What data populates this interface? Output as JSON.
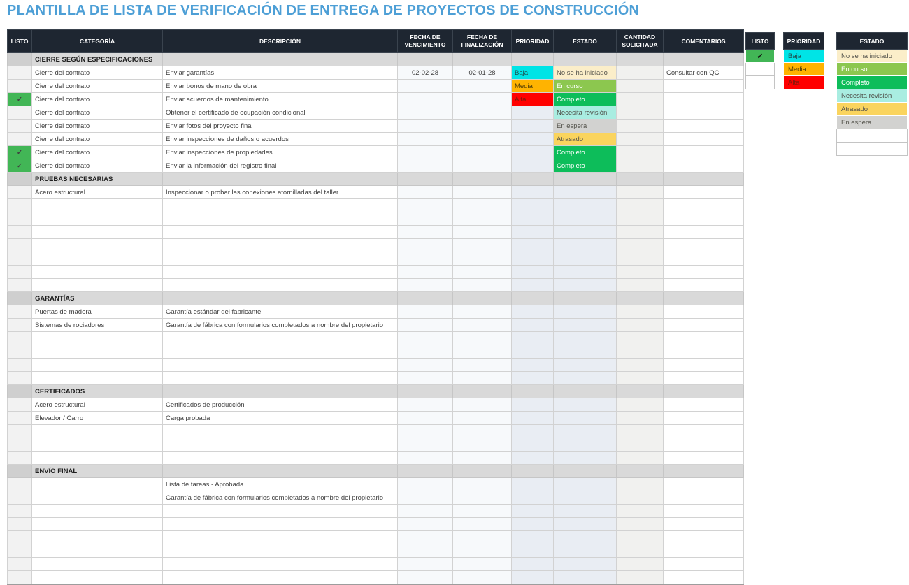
{
  "title": "PLANTILLA DE LISTA DE VERIFICACIÓN DE ENTREGA DE PROYECTOS DE CONSTRUCCIÓN",
  "colors": {
    "title": "#4d9fd6",
    "header_bg": "#1e2631",
    "check_bg": "#42b656",
    "priority": {
      "Baja": {
        "bg": "#00e4e6",
        "fg": "#204848"
      },
      "Media": {
        "bg": "#ffb301",
        "fg": "#4c3a07"
      },
      "Alta": {
        "bg": "#ff0000",
        "fg": "#7a1b0c"
      }
    },
    "status": {
      "No se ha iniciado": {
        "bg": "#fbeec9",
        "fg": "#55544d"
      },
      "En curso": {
        "bg": "#8cc74f",
        "fg": "#ffffff"
      },
      "Completo": {
        "bg": "#0dbd5a",
        "fg": "#ffffff"
      },
      "Necesita revisión": {
        "bg": "#a9ede1",
        "fg": "#4c4b45"
      },
      "Atrasado": {
        "bg": "#fad45e",
        "fg": "#55544d"
      },
      "En espera": {
        "bg": "#d2d2d0",
        "fg": "#55544d"
      }
    }
  },
  "table": {
    "columns": [
      "LISTO",
      "CATEGORÍA",
      "DESCRIPCIÓN",
      "FECHA DE VENCIMIENTO",
      "FECHA DE FINALIZACIÓN",
      "PRIORIDAD",
      "ESTADO",
      "CANTIDAD SOLICITADA",
      "COMENTARIOS"
    ],
    "check_glyph": "✓",
    "sections": [
      {
        "name": "CIERRE SEGÚN ESPECIFICACIONES",
        "rows": [
          {
            "listo": false,
            "categoria": "Cierre del contrato",
            "descripcion": "Enviar garantías",
            "vencimiento": "02-02-28",
            "finalizacion": "02-01-28",
            "prioridad": "Baja",
            "estado": "No se ha iniciado",
            "cantidad": "",
            "comentarios": "Consultar con QC"
          },
          {
            "listo": false,
            "categoria": "Cierre del contrato",
            "descripcion": "Enviar bonos de mano de obra",
            "vencimiento": "",
            "finalizacion": "",
            "prioridad": "Media",
            "estado": "En curso",
            "cantidad": "",
            "comentarios": ""
          },
          {
            "listo": true,
            "categoria": "Cierre del contrato",
            "descripcion": "Enviar acuerdos de mantenimiento",
            "vencimiento": "",
            "finalizacion": "",
            "prioridad": "Alta",
            "estado": "Completo",
            "cantidad": "",
            "comentarios": ""
          },
          {
            "listo": false,
            "categoria": "Cierre del contrato",
            "descripcion": "Obtener el certificado de ocupación condicional",
            "vencimiento": "",
            "finalizacion": "",
            "prioridad": "",
            "estado": "Necesita revisión",
            "cantidad": "",
            "comentarios": ""
          },
          {
            "listo": false,
            "categoria": "Cierre del contrato",
            "descripcion": "Enviar fotos del proyecto final",
            "vencimiento": "",
            "finalizacion": "",
            "prioridad": "",
            "estado": "En espera",
            "cantidad": "",
            "comentarios": ""
          },
          {
            "listo": false,
            "categoria": "Cierre del contrato",
            "descripcion": "Enviar inspecciones de daños o acuerdos",
            "vencimiento": "",
            "finalizacion": "",
            "prioridad": "",
            "estado": "Atrasado",
            "cantidad": "",
            "comentarios": ""
          },
          {
            "listo": true,
            "categoria": "Cierre del contrato",
            "descripcion": "Enviar inspecciones de propiedades",
            "vencimiento": "",
            "finalizacion": "",
            "prioridad": "",
            "estado": "Completo",
            "cantidad": "",
            "comentarios": ""
          },
          {
            "listo": true,
            "categoria": "Cierre del contrato",
            "descripcion": "Enviar la información del registro final",
            "vencimiento": "",
            "finalizacion": "",
            "prioridad": "",
            "estado": "Completo",
            "cantidad": "",
            "comentarios": ""
          }
        ]
      },
      {
        "name": "PRUEBAS NECESARIAS",
        "rows": [
          {
            "listo": false,
            "categoria": "Acero estructural",
            "descripcion": "Inspeccionar o probar las conexiones atornilladas del taller",
            "vencimiento": "",
            "finalizacion": "",
            "prioridad": "",
            "estado": "",
            "cantidad": "",
            "comentarios": ""
          },
          {},
          {},
          {},
          {},
          {},
          {},
          {}
        ]
      },
      {
        "name": "GARANTÍAS",
        "rows": [
          {
            "listo": false,
            "categoria": "Puertas de madera",
            "descripcion": "Garantía estándar del fabricante",
            "vencimiento": "",
            "finalizacion": "",
            "prioridad": "",
            "estado": "",
            "cantidad": "",
            "comentarios": ""
          },
          {
            "listo": false,
            "categoria": "Sistemas de rociadores",
            "descripcion": "Garantía de fábrica con formularios completados a nombre del propietario",
            "vencimiento": "",
            "finalizacion": "",
            "prioridad": "",
            "estado": "",
            "cantidad": "",
            "comentarios": ""
          },
          {},
          {},
          {},
          {}
        ]
      },
      {
        "name": "CERTIFICADOS",
        "rows": [
          {
            "listo": false,
            "categoria": "Acero estructural",
            "descripcion": "Certificados de producción",
            "vencimiento": "",
            "finalizacion": "",
            "prioridad": "",
            "estado": "",
            "cantidad": "",
            "comentarios": ""
          },
          {
            "listo": false,
            "categoria": "Elevador / Carro",
            "descripcion": "Carga probada",
            "vencimiento": "",
            "finalizacion": "",
            "prioridad": "",
            "estado": "",
            "cantidad": "",
            "comentarios": ""
          },
          {},
          {},
          {}
        ]
      },
      {
        "name": "ENVÍO FINAL",
        "rows": [
          {
            "listo": false,
            "categoria": "",
            "descripcion": "Lista de tareas - Aprobada",
            "vencimiento": "",
            "finalizacion": "",
            "prioridad": "",
            "estado": "",
            "cantidad": "",
            "comentarios": ""
          },
          {
            "listo": false,
            "categoria": "",
            "descripcion": "Garantía de fábrica con formularios completados a nombre del propietario",
            "vencimiento": "",
            "finalizacion": "",
            "prioridad": "",
            "estado": "",
            "cantidad": "",
            "comentarios": ""
          },
          {},
          {},
          {},
          {},
          {},
          {}
        ]
      }
    ]
  },
  "legends": {
    "listo": {
      "header": "LISTO",
      "rows": [
        {
          "checked": true
        },
        {
          "checked": false
        },
        {
          "checked": false
        }
      ]
    },
    "prioridad": {
      "header": "PRIORIDAD",
      "rows": [
        {
          "label": "Baja"
        },
        {
          "label": "Media"
        },
        {
          "label": "Alta"
        }
      ]
    },
    "estado": {
      "header": "ESTADO",
      "rows": [
        {
          "label": "No se ha iniciado"
        },
        {
          "label": "En curso"
        },
        {
          "label": "Completo"
        },
        {
          "label": "Necesita revisión"
        },
        {
          "label": "Atrasado"
        },
        {
          "label": "En espera"
        },
        {
          "label": ""
        },
        {
          "label": ""
        }
      ]
    }
  }
}
